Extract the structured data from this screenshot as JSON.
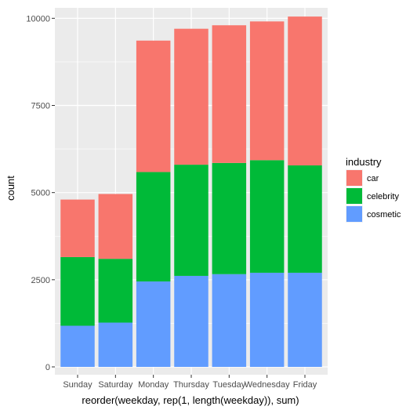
{
  "chart_data": {
    "type": "bar",
    "stacked": true,
    "title": "",
    "xlabel": "reorder(weekday, rep(1, length(weekday)), sum)",
    "ylabel": "count",
    "categories": [
      "Sunday",
      "Saturday",
      "Monday",
      "Thursday",
      "Tuesday",
      "Wednesday",
      "Friday"
    ],
    "series": [
      {
        "name": "cosmetic",
        "color": "#619CFF",
        "values": [
          1180,
          1270,
          2450,
          2610,
          2660,
          2700,
          2700
        ]
      },
      {
        "name": "celebrity",
        "color": "#00BA38",
        "values": [
          1970,
          1830,
          3140,
          3190,
          3190,
          3230,
          3080
        ]
      },
      {
        "name": "car",
        "color": "#F8766D",
        "values": [
          1650,
          1860,
          3770,
          3900,
          3950,
          3980,
          4270
        ]
      }
    ],
    "ylim": [
      -225,
      10300
    ],
    "yticks": [
      0,
      2500,
      5000,
      7500,
      10000
    ],
    "ytick_labels": [
      "0",
      "2500",
      "5000",
      "7500",
      "10000"
    ],
    "grid": true,
    "legend": {
      "title": "industry",
      "placement": "right",
      "entries": [
        {
          "label": "car",
          "color": "#F8766D"
        },
        {
          "label": "celebrity",
          "color": "#00BA38"
        },
        {
          "label": "cosmetic",
          "color": "#619CFF"
        }
      ]
    },
    "panel_background": "#EBEBEB",
    "gridline_color": "#FFFFFF"
  }
}
